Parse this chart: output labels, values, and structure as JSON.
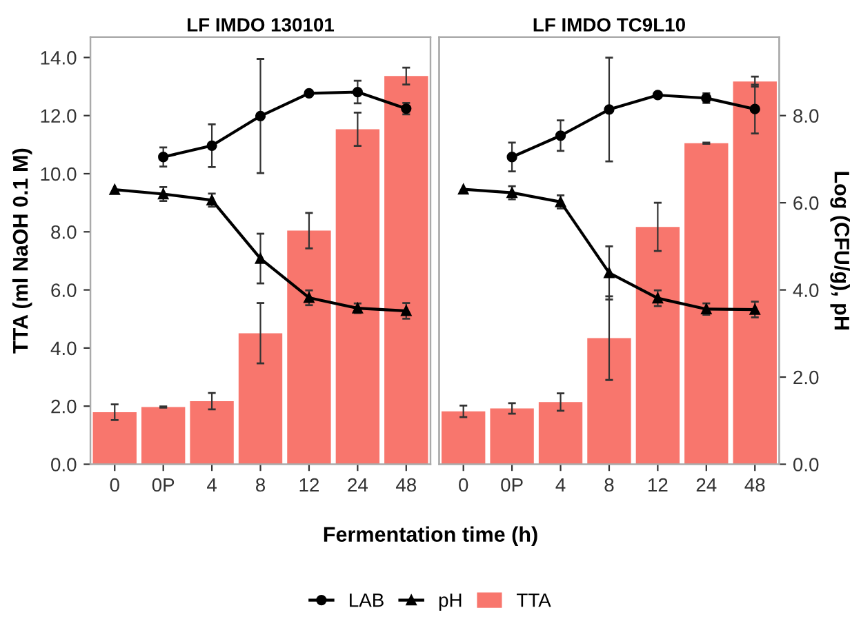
{
  "chart_data": [
    {
      "type": "bar",
      "title": "LF IMDO 130101",
      "xlabel": "Fermentation time (h)",
      "ylabel": "TTA (ml NaOH 0.1 M)",
      "categories": [
        "0",
        "0P",
        "4",
        "8",
        "12",
        "24",
        "48"
      ],
      "series": [
        {
          "name": "TTA",
          "color": "#f8766d",
          "values": [
            1.79,
            1.97,
            2.17,
            4.51,
            8.04,
            11.53,
            13.36
          ],
          "errors": [
            0.27,
            0.02,
            0.28,
            1.04,
            0.61,
            0.57,
            0.29
          ]
        },
        {
          "name": "LAB",
          "type": "line",
          "axis": "y2",
          "marker": "circle",
          "color": "#000000",
          "values": [
            null,
            7.05,
            7.31,
            7.99,
            8.51,
            8.54,
            8.16
          ],
          "errors": [
            null,
            0.22,
            0.49,
            1.31,
            0.03,
            0.26,
            0.13
          ]
        },
        {
          "name": "pH",
          "type": "line",
          "axis": "y2",
          "marker": "triangle",
          "color": "#000000",
          "values": [
            6.3,
            6.2,
            6.06,
            4.72,
            3.82,
            3.58,
            3.52
          ],
          "errors": [
            null,
            0.16,
            0.15,
            0.57,
            0.17,
            0.11,
            0.18
          ]
        }
      ],
      "ylim": [
        0,
        14.7
      ],
      "yticks": [
        {
          "value": 0,
          "label": "0.0"
        },
        {
          "value": 2,
          "label": "2.0"
        },
        {
          "value": 4,
          "label": "4.0"
        },
        {
          "value": 6,
          "label": "6.0"
        },
        {
          "value": 8,
          "label": "8.0"
        },
        {
          "value": 10,
          "label": "10.0"
        },
        {
          "value": 12,
          "label": "12.0"
        },
        {
          "value": 14,
          "label": "14.0"
        }
      ],
      "y2lim": [
        0,
        9.8
      ],
      "tick_labels": [
        "x",
        "y"
      ],
      "legend": "bottom",
      "grid": false
    },
    {
      "type": "bar",
      "title": "LF IMDO TC9L10",
      "y2label": "Log (CFU/g), pH",
      "categories": [
        "0",
        "0P",
        "4",
        "8",
        "12",
        "24",
        "48"
      ],
      "series": [
        {
          "color": "#f8766d",
          "values": [
            1.82,
            1.92,
            2.14,
            4.34,
            8.17,
            11.05,
            13.17
          ],
          "errors": [
            0.2,
            0.18,
            0.3,
            1.44,
            0.83,
            0.02,
            0.17
          ]
        },
        {
          "type": "line",
          "axis": "y2",
          "marker": "circle",
          "color": "#000000",
          "values": [
            null,
            7.05,
            7.54,
            8.14,
            8.47,
            8.4,
            8.15
          ],
          "errors": [
            null,
            0.33,
            0.35,
            1.19,
            0.05,
            0.11,
            0.56
          ]
        },
        {
          "type": "line",
          "axis": "y2",
          "marker": "triangle",
          "color": "#000000",
          "values": [
            6.31,
            6.23,
            6.02,
            4.39,
            3.81,
            3.56,
            3.55
          ],
          "errors": [
            null,
            0.15,
            0.15,
            0.61,
            0.18,
            0.13,
            0.18
          ]
        }
      ],
      "ylim": [
        0,
        14.7
      ],
      "y2lim": [
        0,
        9.8
      ],
      "y2ticks": [
        {
          "value": 0,
          "label": "0.0"
        },
        {
          "value": 2,
          "label": "2.0"
        },
        {
          "value": 4,
          "label": "4.0"
        },
        {
          "value": 6,
          "label": "6.0"
        },
        {
          "value": 8,
          "label": "8.0"
        }
      ],
      "tick_labels": [
        "x",
        "y2"
      ],
      "grid": false
    }
  ]
}
